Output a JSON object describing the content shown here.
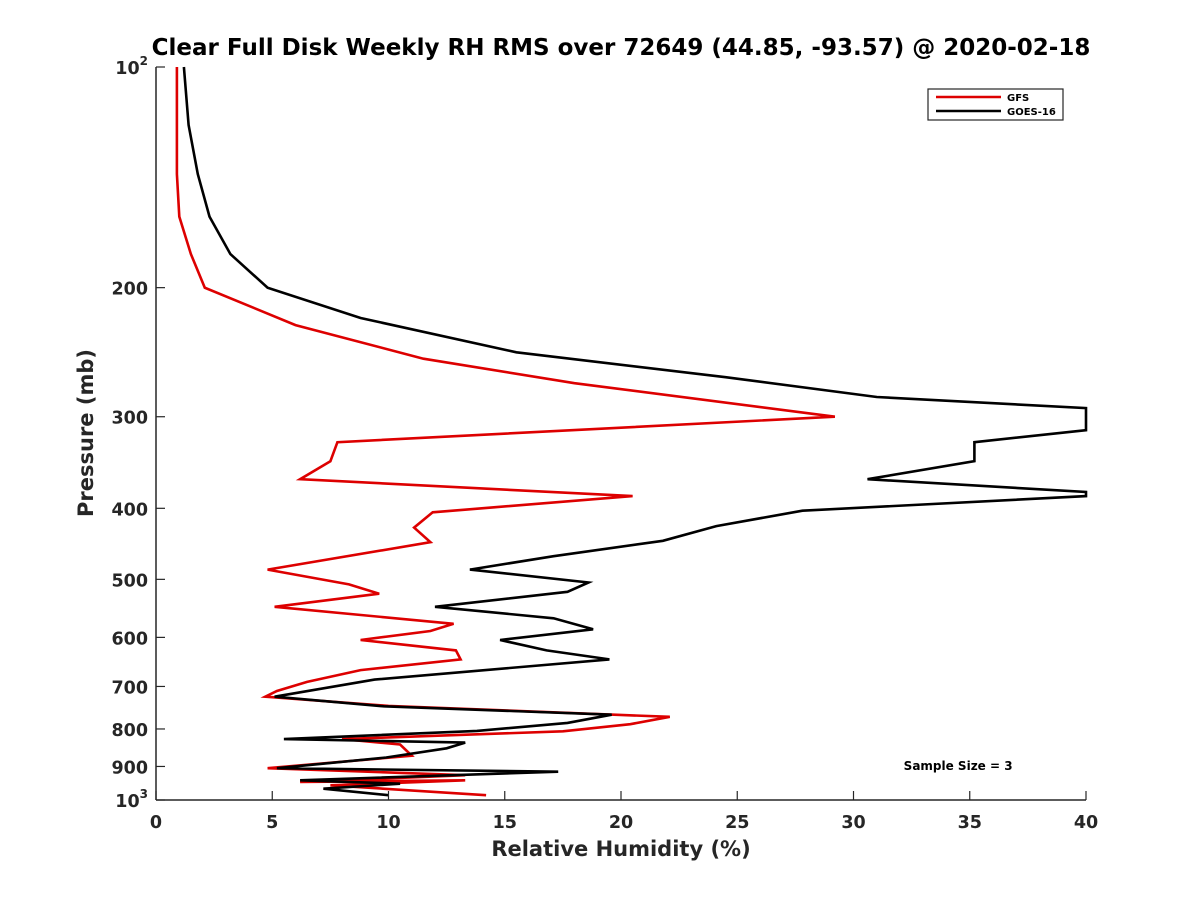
{
  "chart_data": {
    "type": "line",
    "title": "Clear Full Disk Weekly RH RMS over 72649 (44.85, -93.57) @ 2020-02-18",
    "xlabel": "Relative Humidity (%)",
    "ylabel": "Pressure (mb)",
    "xlim": [
      0,
      40
    ],
    "ylim": [
      100,
      1000
    ],
    "yscale": "log",
    "yreversed": true,
    "grid": false,
    "legend_position": "top-right",
    "xticks": [
      0,
      5,
      10,
      15,
      20,
      25,
      30,
      35,
      40
    ],
    "xtick_labels": [
      "0",
      "5",
      "10",
      "15",
      "20",
      "25",
      "30",
      "35",
      "40"
    ],
    "yticks": [
      {
        "value": 100,
        "base": "10",
        "exp": "2"
      },
      {
        "value": 200,
        "label": "200"
      },
      {
        "value": 300,
        "label": "300"
      },
      {
        "value": 400,
        "label": "400"
      },
      {
        "value": 500,
        "label": "500"
      },
      {
        "value": 600,
        "label": "600"
      },
      {
        "value": 700,
        "label": "700"
      },
      {
        "value": 800,
        "label": "800"
      },
      {
        "value": 900,
        "label": "900"
      },
      {
        "value": 1000,
        "base": "10",
        "exp": "3"
      }
    ],
    "series": [
      {
        "name": "GFS",
        "color": "#dd0000",
        "points": [
          [
            0.9,
            100
          ],
          [
            0.9,
            120
          ],
          [
            0.9,
            140
          ],
          [
            1.0,
            160
          ],
          [
            1.5,
            180
          ],
          [
            2.1,
            200
          ],
          [
            6.0,
            225
          ],
          [
            11.5,
            250
          ],
          [
            18.0,
            270
          ],
          [
            29.2,
            300
          ],
          [
            7.8,
            325
          ],
          [
            7.5,
            345
          ],
          [
            6.2,
            365
          ],
          [
            20.5,
            385
          ],
          [
            11.9,
            405
          ],
          [
            11.1,
            425
          ],
          [
            11.8,
            445
          ],
          [
            4.8,
            485
          ],
          [
            8.3,
            508
          ],
          [
            9.6,
            523
          ],
          [
            5.1,
            545
          ],
          [
            12.8,
            575
          ],
          [
            11.8,
            588
          ],
          [
            8.8,
            605
          ],
          [
            12.9,
            625
          ],
          [
            13.1,
            643
          ],
          [
            8.8,
            665
          ],
          [
            6.5,
            690
          ],
          [
            5.2,
            710
          ],
          [
            4.7,
            723
          ],
          [
            10.0,
            744
          ],
          [
            19.7,
            765
          ],
          [
            22.1,
            770
          ],
          [
            20.4,
            788
          ],
          [
            17.5,
            806
          ],
          [
            8.0,
            826
          ],
          [
            10.5,
            840
          ],
          [
            11.0,
            870
          ],
          [
            4.8,
            905
          ],
          [
            13.3,
            925
          ],
          [
            6.2,
            945
          ],
          [
            13.3,
            940
          ],
          [
            7.5,
            955
          ],
          [
            14.2,
            985
          ]
        ]
      },
      {
        "name": "GOES-16",
        "color": "#000000",
        "points": [
          [
            1.2,
            100
          ],
          [
            1.4,
            120
          ],
          [
            1.8,
            140
          ],
          [
            2.3,
            160
          ],
          [
            3.2,
            180
          ],
          [
            4.8,
            200
          ],
          [
            8.8,
            220
          ],
          [
            15.5,
            245
          ],
          [
            24.5,
            265
          ],
          [
            31.0,
            282
          ],
          [
            40,
            292
          ],
          [
            40,
            313
          ],
          [
            35.2,
            325
          ],
          [
            35.2,
            345
          ],
          [
            30.6,
            365
          ],
          [
            40,
            380
          ],
          [
            40,
            385
          ],
          [
            27.8,
            403
          ],
          [
            24.1,
            423
          ],
          [
            21.8,
            443
          ],
          [
            17.1,
            465
          ],
          [
            13.5,
            485
          ],
          [
            18.6,
            505
          ],
          [
            17.7,
            520
          ],
          [
            12.0,
            545
          ],
          [
            17.1,
            565
          ],
          [
            18.8,
            585
          ],
          [
            14.8,
            605
          ],
          [
            16.8,
            625
          ],
          [
            19.5,
            643
          ],
          [
            9.4,
            685
          ],
          [
            5.1,
            723
          ],
          [
            9.8,
            745
          ],
          [
            19.6,
            765
          ],
          [
            17.7,
            785
          ],
          [
            13.8,
            805
          ],
          [
            5.5,
            826
          ],
          [
            13.3,
            835
          ],
          [
            12.5,
            850
          ],
          [
            9.9,
            875
          ],
          [
            5.2,
            905
          ],
          [
            17.3,
            915
          ],
          [
            6.2,
            940
          ],
          [
            10.5,
            950
          ],
          [
            7.2,
            965
          ],
          [
            10.0,
            985
          ]
        ]
      }
    ],
    "annotations": [
      {
        "text": "Sample Size = 3",
        "x": 34.5,
        "y": 910
      }
    ]
  }
}
